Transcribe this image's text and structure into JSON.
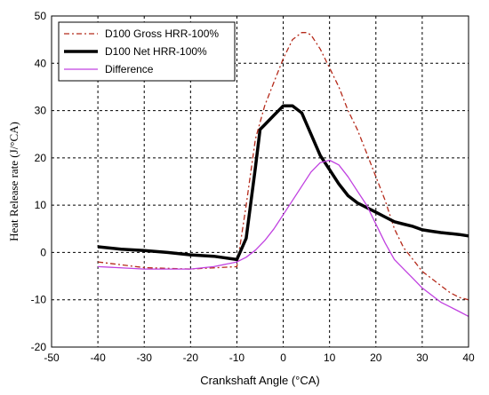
{
  "chart_data": {
    "type": "line",
    "xlabel": "Crankshaft Angle  (°CA)",
    "ylabel": "Heat Release rate  (J/°CA)",
    "xlim": [
      -50,
      40
    ],
    "ylim": [
      -20,
      50
    ],
    "xticks": [
      -50,
      -40,
      -30,
      -20,
      -10,
      0,
      10,
      20,
      30,
      40
    ],
    "yticks": [
      -20,
      -10,
      0,
      10,
      20,
      30,
      40,
      50
    ],
    "grid": true,
    "legend_position": "top-left",
    "series": [
      {
        "name": "D100 Gross HRR-100%",
        "color": "#b52a1a",
        "style": "dashdot",
        "x": [
          -40,
          -30,
          -20,
          -10,
          -8,
          -6,
          -4,
          -2,
          0,
          2,
          4,
          5,
          6,
          8,
          10,
          12,
          14,
          16,
          18,
          20,
          22,
          24,
          26,
          28,
          30,
          32,
          34,
          36,
          38,
          40
        ],
        "y": [
          -2,
          -3.2,
          -3.5,
          -3,
          10,
          24,
          31,
          36,
          41,
          45,
          46.5,
          46.5,
          46,
          43,
          39,
          35,
          30,
          26,
          21,
          16,
          11,
          5,
          1,
          -1.5,
          -4,
          -5.5,
          -7,
          -8.5,
          -9.5,
          -10
        ]
      },
      {
        "name": "D100 Net HRR-100%",
        "color": "#000000",
        "style": "solid",
        "x": [
          -40,
          -35,
          -30,
          -25,
          -20,
          -15,
          -10,
          -8,
          -6,
          -5,
          -4,
          -2,
          0,
          2,
          4,
          6,
          8,
          10,
          12,
          14,
          16,
          18,
          20,
          22,
          24,
          26,
          28,
          30,
          32,
          34,
          36,
          38,
          40
        ],
        "y": [
          1.2,
          0.7,
          0.4,
          0,
          -0.5,
          -0.8,
          -1.5,
          3,
          18,
          26,
          27,
          29,
          31,
          31,
          29.5,
          25,
          20.5,
          17.5,
          14.5,
          12,
          10.5,
          9.5,
          8.5,
          7.5,
          6.5,
          6,
          5.5,
          4.8,
          4.5,
          4.2,
          4,
          3.8,
          3.5
        ]
      },
      {
        "name": "Difference",
        "color": "#c040e0",
        "style": "solid",
        "x": [
          -40,
          -30,
          -20,
          -15,
          -10,
          -8,
          -6,
          -4,
          -2,
          0,
          2,
          4,
          6,
          8,
          10,
          12,
          14,
          16,
          18,
          20,
          22,
          24,
          26,
          28,
          30,
          32,
          34,
          36,
          38,
          40
        ],
        "y": [
          -3,
          -3.5,
          -3.5,
          -3,
          -2,
          -1,
          0.5,
          2.5,
          5,
          8,
          11,
          14,
          17,
          19,
          19.5,
          18.5,
          16,
          13,
          10,
          6,
          2,
          -1.5,
          -3.5,
          -5.5,
          -7.5,
          -9,
          -10.5,
          -11.5,
          -12.5,
          -13.5
        ]
      }
    ]
  }
}
